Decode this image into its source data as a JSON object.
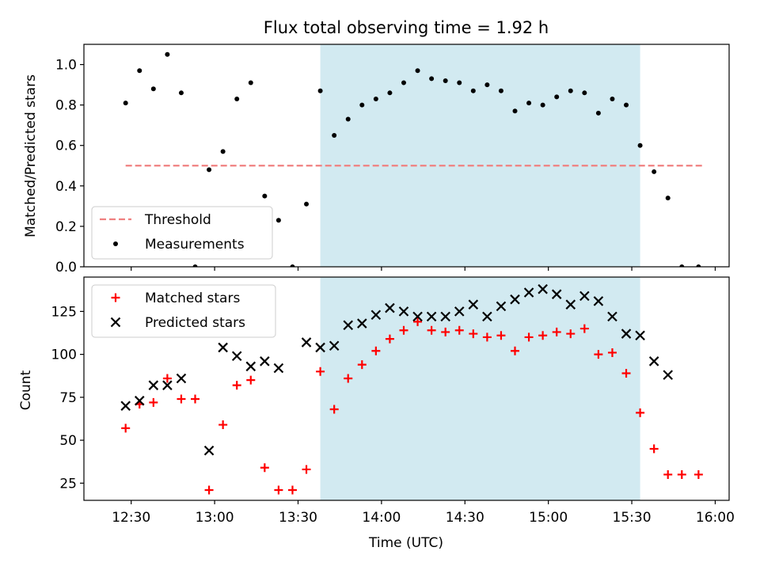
{
  "figure": {
    "title": "Flux total observing time = 1.92 h"
  },
  "chart_data": [
    {
      "type": "scatter",
      "panel": "top",
      "ylabel": "Matched/Predicted stars",
      "xlabel": "",
      "ylim": [
        0,
        1.1
      ],
      "yticks": [
        0.0,
        0.2,
        0.4,
        0.6,
        0.8,
        1.0
      ],
      "ytick_labels": [
        "0.0",
        "0.2",
        "0.4",
        "0.6",
        "0.8",
        "1.0"
      ],
      "shaded_region": {
        "start": "13:38",
        "end": "15:33",
        "color": "#add8e6"
      },
      "legend_position": "lower-left",
      "series": [
        {
          "name": "Threshold",
          "kind": "dashed-line",
          "color": "#f08080",
          "x": [
            "12:28",
            "15:56"
          ],
          "y": [
            0.5,
            0.5
          ]
        },
        {
          "name": "Measurements",
          "kind": "points",
          "color": "#000000",
          "x": [
            "12:28",
            "12:33",
            "12:38",
            "12:43",
            "12:48",
            "12:53",
            "12:58",
            "13:03",
            "13:08",
            "13:13",
            "13:18",
            "13:23",
            "13:28",
            "13:33",
            "13:38",
            "13:43",
            "13:48",
            "13:53",
            "13:58",
            "14:03",
            "14:08",
            "14:13",
            "14:18",
            "14:23",
            "14:28",
            "14:33",
            "14:38",
            "14:43",
            "14:48",
            "14:53",
            "14:58",
            "15:03",
            "15:08",
            "15:13",
            "15:18",
            "15:23",
            "15:28",
            "15:33",
            "15:38",
            "15:43",
            "15:48",
            "15:54"
          ],
          "y": [
            0.81,
            0.97,
            0.88,
            1.05,
            0.86,
            0.0,
            0.48,
            0.57,
            0.83,
            0.91,
            0.35,
            0.23,
            0.0,
            0.31,
            0.87,
            0.65,
            0.73,
            0.8,
            0.83,
            0.86,
            0.91,
            0.97,
            0.93,
            0.92,
            0.91,
            0.87,
            0.9,
            0.87,
            0.77,
            0.81,
            0.8,
            0.84,
            0.87,
            0.86,
            0.76,
            0.83,
            0.8,
            0.6,
            0.47,
            0.34,
            0.0,
            0.0
          ]
        }
      ]
    },
    {
      "type": "scatter",
      "panel": "bottom",
      "ylabel": "Count",
      "xlabel": "Time (UTC)",
      "ylim": [
        15,
        145
      ],
      "yticks": [
        25,
        50,
        75,
        100,
        125
      ],
      "ytick_labels": [
        "25",
        "50",
        "75",
        "100",
        "125"
      ],
      "xticks": [
        "12:30",
        "13:00",
        "13:30",
        "14:00",
        "14:30",
        "15:00",
        "15:30",
        "16:00"
      ],
      "xlim": [
        "12:13",
        "16:05"
      ],
      "shaded_region": {
        "start": "13:38",
        "end": "15:33",
        "color": "#add8e6"
      },
      "legend_position": "upper-left",
      "series": [
        {
          "name": "Matched stars",
          "marker": "plus",
          "color": "#ff0000",
          "x": [
            "12:28",
            "12:33",
            "12:38",
            "12:43",
            "12:48",
            "12:53",
            "12:58",
            "13:03",
            "13:08",
            "13:13",
            "13:18",
            "13:23",
            "13:28",
            "13:33",
            "13:38",
            "13:43",
            "13:48",
            "13:53",
            "13:58",
            "14:03",
            "14:08",
            "14:13",
            "14:18",
            "14:23",
            "14:28",
            "14:33",
            "14:38",
            "14:43",
            "14:48",
            "14:53",
            "14:58",
            "15:03",
            "15:08",
            "15:13",
            "15:18",
            "15:23",
            "15:28",
            "15:33",
            "15:38",
            "15:43",
            "15:48",
            "15:54"
          ],
          "y": [
            57,
            71,
            72,
            86,
            74,
            74,
            21,
            59,
            82,
            85,
            34,
            21,
            21,
            33,
            90,
            68,
            86,
            94,
            102,
            109,
            114,
            119,
            114,
            113,
            114,
            112,
            110,
            111,
            102,
            110,
            111,
            113,
            112,
            115,
            100,
            101,
            89,
            66,
            45,
            30,
            30,
            30
          ]
        },
        {
          "name": "Predicted stars",
          "marker": "x",
          "color": "#000000",
          "x": [
            "12:28",
            "12:33",
            "12:38",
            "12:43",
            "12:48",
            "12:58",
            "13:03",
            "13:08",
            "13:13",
            "13:18",
            "13:23",
            "13:33",
            "13:38",
            "13:43",
            "13:48",
            "13:53",
            "13:58",
            "14:03",
            "14:08",
            "14:13",
            "14:18",
            "14:23",
            "14:28",
            "14:33",
            "14:38",
            "14:43",
            "14:48",
            "14:53",
            "14:58",
            "15:03",
            "15:08",
            "15:13",
            "15:18",
            "15:23",
            "15:28",
            "15:33",
            "15:38",
            "15:43"
          ],
          "y": [
            70,
            73,
            82,
            82,
            86,
            44,
            104,
            99,
            93,
            96,
            92,
            107,
            104,
            105,
            117,
            118,
            123,
            127,
            125,
            122,
            122,
            122,
            125,
            129,
            122,
            128,
            132,
            136,
            138,
            135,
            129,
            134,
            131,
            122,
            112,
            111,
            96,
            88
          ]
        }
      ]
    }
  ]
}
